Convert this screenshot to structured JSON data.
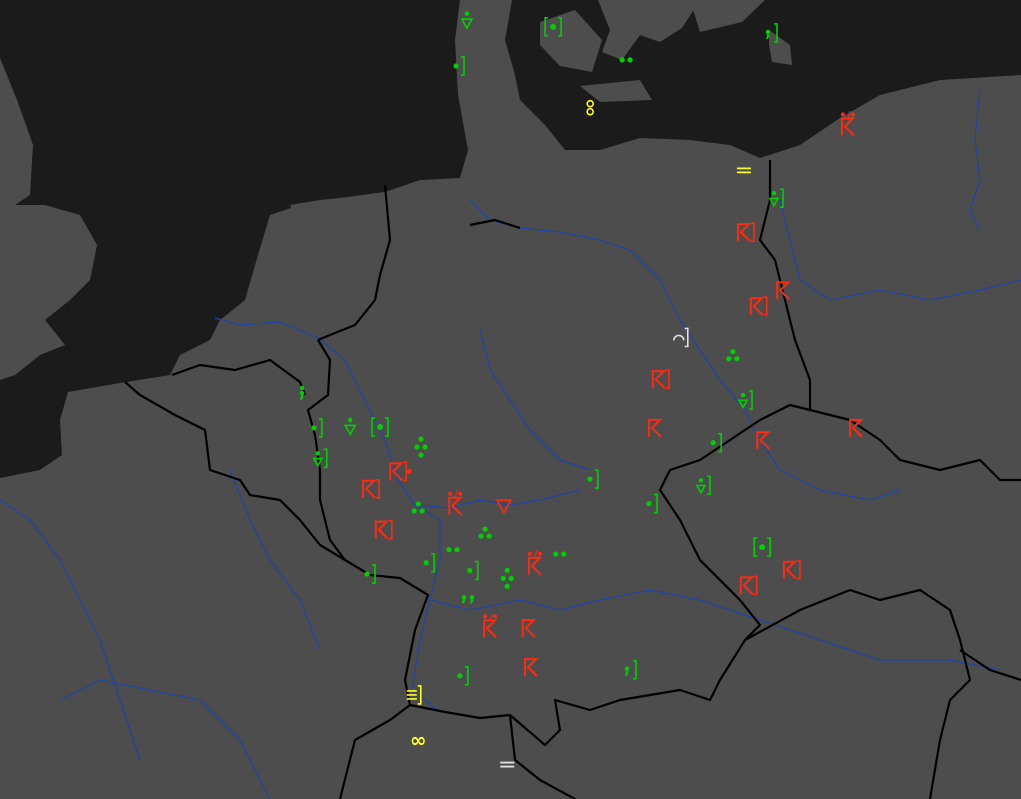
{
  "map": {
    "colors": {
      "sea": "#1b1b1b",
      "land": "#4d4d4d",
      "border": "#000000",
      "river": "#1f45a8",
      "green": "#00d000",
      "red": "#ff2a10",
      "yellow": "#ffff20",
      "white": "#e0e0e0"
    },
    "markers": [
      {
        "type": "dot-triangle",
        "color": "green",
        "lat": 55.6,
        "lon": 8.46
      },
      {
        "type": "dot-double-bracket",
        "color": "green",
        "lat": 55.54,
        "lon": 10.02
      },
      {
        "type": "dot-bracket",
        "color": "green",
        "lat": 55.09,
        "lon": 8.3
      },
      {
        "type": "two-dots",
        "color": "green",
        "lat": 55.16,
        "lon": 11.34
      },
      {
        "type": "comma-bracket",
        "color": "green",
        "lat": 55.47,
        "lon": 13.96
      },
      {
        "type": "dot-triangle-bracket",
        "color": "green",
        "lat": 53.57,
        "lon": 14.05
      },
      {
        "type": "three-dots",
        "color": "green",
        "lat": 51.76,
        "lon": 13.27
      },
      {
        "type": "dot-triangle-bracket",
        "color": "green",
        "lat": 51.25,
        "lon": 13.49
      },
      {
        "type": "dot-bracket",
        "color": "green",
        "lat": 50.76,
        "lon": 12.95
      },
      {
        "type": "dot-triangle-bracket",
        "color": "green",
        "lat": 50.27,
        "lon": 12.73
      },
      {
        "type": "dot-double-bracket",
        "color": "green",
        "lat": 49.56,
        "lon": 13.8
      },
      {
        "type": "dot-bracket",
        "color": "green",
        "lat": 50.34,
        "lon": 10.72
      },
      {
        "type": "dot-bracket",
        "color": "green",
        "lat": 50.06,
        "lon": 11.79
      },
      {
        "type": "comma-bracket",
        "color": "green",
        "lat": 48.15,
        "lon": 11.41
      },
      {
        "type": "dot-bracket",
        "color": "green",
        "lat": 48.08,
        "lon": 8.37
      },
      {
        "type": "dot-comma",
        "color": "green",
        "lat": 51.33,
        "lon": 5.48
      },
      {
        "type": "dot-bracket",
        "color": "green",
        "lat": 50.93,
        "lon": 5.73
      },
      {
        "type": "dot-triangle",
        "color": "green",
        "lat": 50.93,
        "lon": 6.35
      },
      {
        "type": "dot-double-bracket",
        "color": "green",
        "lat": 50.94,
        "lon": 6.89
      },
      {
        "type": "four-dots",
        "color": "green",
        "lat": 50.71,
        "lon": 7.63
      },
      {
        "type": "dot-triangle-bracket",
        "color": "green",
        "lat": 50.58,
        "lon": 5.8
      },
      {
        "type": "three-dots",
        "color": "green",
        "lat": 50.01,
        "lon": 7.58
      },
      {
        "type": "three-dots",
        "color": "green",
        "lat": 49.72,
        "lon": 8.79
      },
      {
        "type": "two-dots",
        "color": "green",
        "lat": 49.53,
        "lon": 8.21
      },
      {
        "type": "two-dots",
        "color": "green",
        "lat": 49.48,
        "lon": 10.14
      },
      {
        "type": "dot-bracket",
        "color": "green",
        "lat": 49.38,
        "lon": 7.76
      },
      {
        "type": "dot-bracket",
        "color": "green",
        "lat": 49.29,
        "lon": 8.55
      },
      {
        "type": "four-dots",
        "color": "green",
        "lat": 49.2,
        "lon": 9.19
      },
      {
        "type": "two-commas",
        "color": "green",
        "lat": 48.96,
        "lon": 8.48
      },
      {
        "type": "dot-bracket",
        "color": "green",
        "lat": 49.25,
        "lon": 6.69
      },
      {
        "type": "flag-dots",
        "color": "red",
        "lat": 54.43,
        "lon": 15.35
      },
      {
        "type": "flag-bracket",
        "color": "red",
        "lat": 53.18,
        "lon": 13.49
      },
      {
        "type": "flag",
        "color": "red",
        "lat": 52.51,
        "lon": 14.18
      },
      {
        "type": "flag-bracket",
        "color": "red",
        "lat": 52.33,
        "lon": 13.72
      },
      {
        "type": "flag-bracket",
        "color": "red",
        "lat": 51.49,
        "lon": 11.95
      },
      {
        "type": "flag",
        "color": "red",
        "lat": 50.93,
        "lon": 11.86
      },
      {
        "type": "flag",
        "color": "red",
        "lat": 50.79,
        "lon": 13.82
      },
      {
        "type": "flag",
        "color": "red",
        "lat": 50.93,
        "lon": 15.5
      },
      {
        "type": "flag-bracket-dot",
        "color": "red",
        "lat": 50.43,
        "lon": 7.2
      },
      {
        "type": "flag-bracket",
        "color": "red",
        "lat": 50.23,
        "lon": 6.71
      },
      {
        "type": "flag-dots",
        "color": "red",
        "lat": 50.07,
        "lon": 8.25
      },
      {
        "type": "inverted-triangle",
        "color": "red",
        "lat": 50.02,
        "lon": 9.13
      },
      {
        "type": "flag-bracket",
        "color": "red",
        "lat": 49.76,
        "lon": 6.94
      },
      {
        "type": "flag-dots",
        "color": "red",
        "lat": 49.38,
        "lon": 9.69
      },
      {
        "type": "flag-bracket",
        "color": "red",
        "lat": 49.3,
        "lon": 14.32
      },
      {
        "type": "flag-bracket",
        "color": "red",
        "lat": 49.12,
        "lon": 13.54
      },
      {
        "type": "flag-dots",
        "color": "red",
        "lat": 48.66,
        "lon": 8.88
      },
      {
        "type": "flag",
        "color": "red",
        "lat": 48.63,
        "lon": 9.58
      },
      {
        "type": "flag",
        "color": "red",
        "lat": 48.18,
        "lon": 9.62
      },
      {
        "type": "vertical-infinity",
        "color": "yellow",
        "lat": 54.61,
        "lon": 10.69
      },
      {
        "type": "double-bar",
        "color": "yellow",
        "lat": 53.89,
        "lon": 13.47
      },
      {
        "type": "triple-bar-bracket",
        "color": "yellow",
        "lat": 47.86,
        "lon": 7.5
      },
      {
        "type": "infinity",
        "color": "yellow",
        "lat": 47.33,
        "lon": 7.58
      },
      {
        "type": "arc-bracket",
        "color": "white",
        "lat": 51.97,
        "lon": 12.31
      },
      {
        "type": "double-bar",
        "color": "white",
        "lat": 47.06,
        "lon": 9.19
      }
    ]
  }
}
